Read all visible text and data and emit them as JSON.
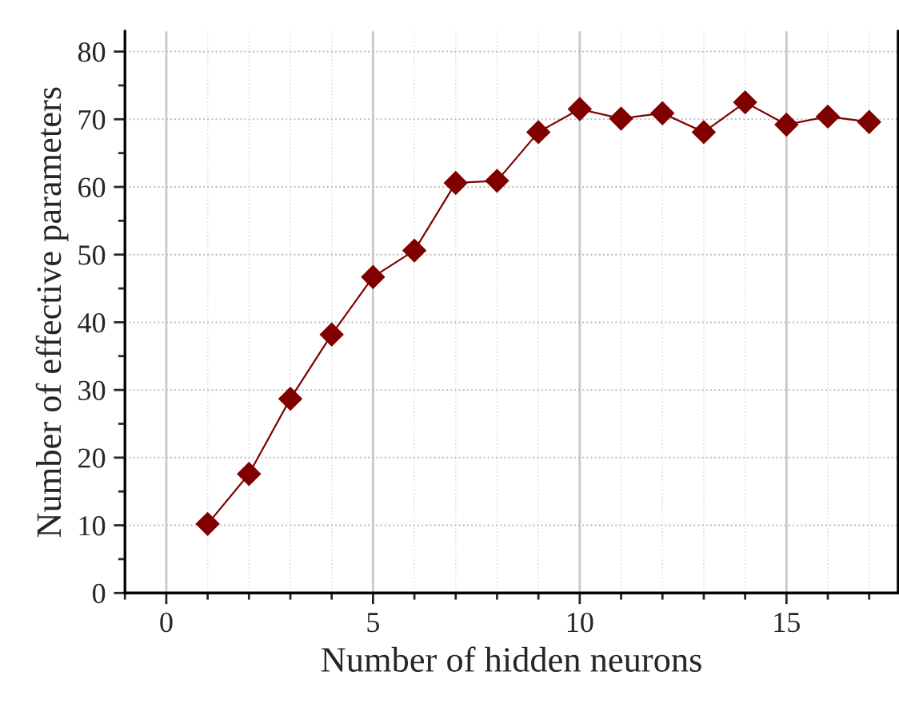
{
  "chart_data": {
    "type": "line",
    "xlabel": "Number of hidden neurons",
    "ylabel": "Number of effective parameters",
    "x": [
      1,
      2,
      3,
      4,
      5,
      6,
      7,
      8,
      9,
      10,
      11,
      12,
      13,
      14,
      15,
      16,
      17
    ],
    "series": [
      {
        "color": "#800000",
        "values": [
          10.2,
          17.6,
          28.7,
          38.2,
          46.7,
          50.6,
          60.6,
          60.9,
          68.1,
          71.5,
          70.1,
          70.9,
          68.1,
          72.5,
          69.2,
          70.4,
          69.6
        ]
      }
    ],
    "xlim": [
      -1,
      17.7
    ],
    "ylim": [
      0,
      83
    ],
    "xticks": [
      0,
      5,
      10,
      15
    ],
    "yticks": [
      0,
      10,
      20,
      30,
      40,
      50,
      60,
      70,
      80
    ],
    "grid": true,
    "marker": "diamond",
    "line_style": "solid"
  }
}
